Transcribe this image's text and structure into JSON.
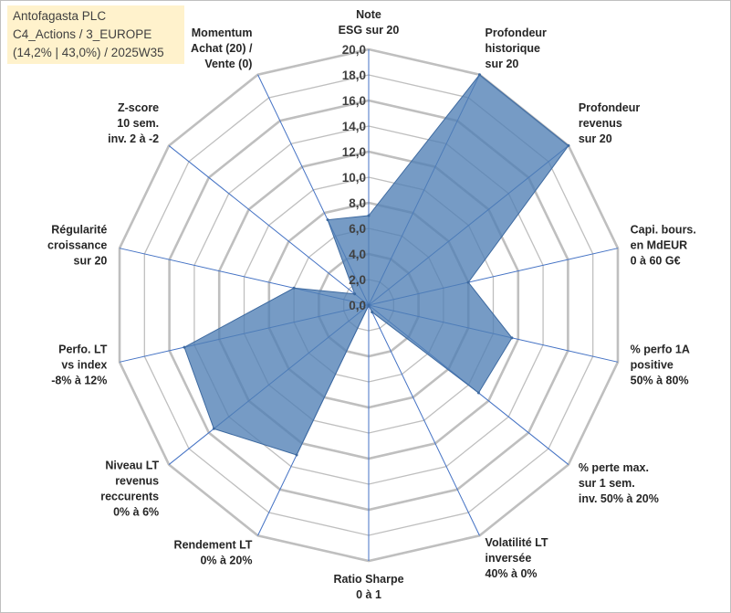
{
  "header": {
    "lines": [
      "Antofagasta PLC",
      "C4_Actions / 3_EUROPE",
      "(14,2% | 43,0%) / 2025W35"
    ]
  },
  "colors": {
    "fill": "#4f7fb5",
    "stroke": "#3e6aa0",
    "grid": "#bfbfbf",
    "spoke": "#4472c4"
  },
  "chart_data": {
    "type": "radar",
    "rmin": 0,
    "rmax": 20,
    "ticks": [
      "0,0",
      "2,0",
      "4,0",
      "6,0",
      "8,0",
      "10,0",
      "12,0",
      "14,0",
      "16,0",
      "18,0",
      "20,0"
    ],
    "categories": [
      [
        "Note",
        "ESG sur 20"
      ],
      [
        "Profondeur",
        "historique",
        "sur 20"
      ],
      [
        "Profondeur",
        "revenus",
        "sur 20"
      ],
      [
        "Capi. bours.",
        "en MdEUR",
        "0 à 60 G€"
      ],
      [
        "% perfo 1A",
        "positive",
        "50% à 80%"
      ],
      [
        "% perte max.",
        "sur 1 sem.",
        "inv. 50% à 20%"
      ],
      [
        "Volatilité LT",
        "inversée",
        "40% à 0%"
      ],
      [
        "Ratio Sharpe",
        "0 à 1"
      ],
      [
        "Rendement LT",
        "0% à 20%"
      ],
      [
        "Niveau LT",
        "revenus",
        "reccurents",
        "0% à 6%"
      ],
      [
        "Perfo. LT",
        "vs index",
        "-8% à 12%"
      ],
      [
        "Régularité",
        "croissance",
        "sur 20"
      ],
      [
        "Z-score",
        "10 sem.",
        "inv. 2 à -2"
      ],
      [
        "Momentum",
        "Achat (20) /",
        "Vente (0)"
      ]
    ],
    "series": [
      {
        "values": [
          7.0,
          20.0,
          20.0,
          8.0,
          11.5,
          11.0,
          0.6,
          0.0,
          13.0,
          15.5,
          14.8,
          6.0,
          1.4,
          7.4
        ]
      }
    ]
  }
}
